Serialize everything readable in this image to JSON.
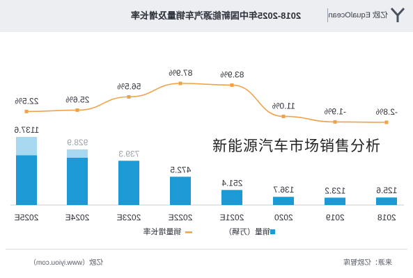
{
  "header": {
    "title": "2018-2025年中国新能源汽车销量及增长率",
    "brand": "亿欧 EqualOcean"
  },
  "overlay": {
    "caption": "新能源汽车市场销售分析"
  },
  "footer": {
    "source": "来源：亿欧智库",
    "site": "亿欧（www.iyiou.com）"
  },
  "colors": {
    "bar": "#1b9ad6",
    "bar_forecast_light": "#a8d8f0",
    "line": "#f0a24a",
    "header_bg": "#eceef2"
  },
  "chart_data": {
    "type": "bar",
    "title": "2018-2025年中国新能源汽车销量及增长率",
    "categories": [
      "2018",
      "2019",
      "2020",
      "2021E",
      "2022E",
      "2023E",
      "2024E",
      "2025E"
    ],
    "series": [
      {
        "name": "销量（万辆）",
        "type": "bar",
        "values": [
          125.6,
          123.2,
          136.7,
          251.4,
          472.5,
          739.3,
          928.9,
          1137.6
        ],
        "value_labels": [
          "125.6",
          "123.2",
          "136.7",
          "251.4",
          "472.5",
          "739.3",
          "928.9",
          "1137.6"
        ]
      },
      {
        "name": "销量增长率",
        "type": "line",
        "values": [
          -2.8,
          -1.9,
          11.0,
          83.9,
          87.9,
          56.5,
          25.6,
          22.5
        ],
        "value_labels": [
          "-2.8%",
          "-1.9%",
          "11.0%",
          "83.9%",
          "87.9%",
          "56.5%",
          "25.6%",
          "22.5%"
        ]
      }
    ],
    "legend": [
      "销量（万辆）",
      "销量增长率"
    ],
    "legend_position": "bottom",
    "grid": false
  }
}
